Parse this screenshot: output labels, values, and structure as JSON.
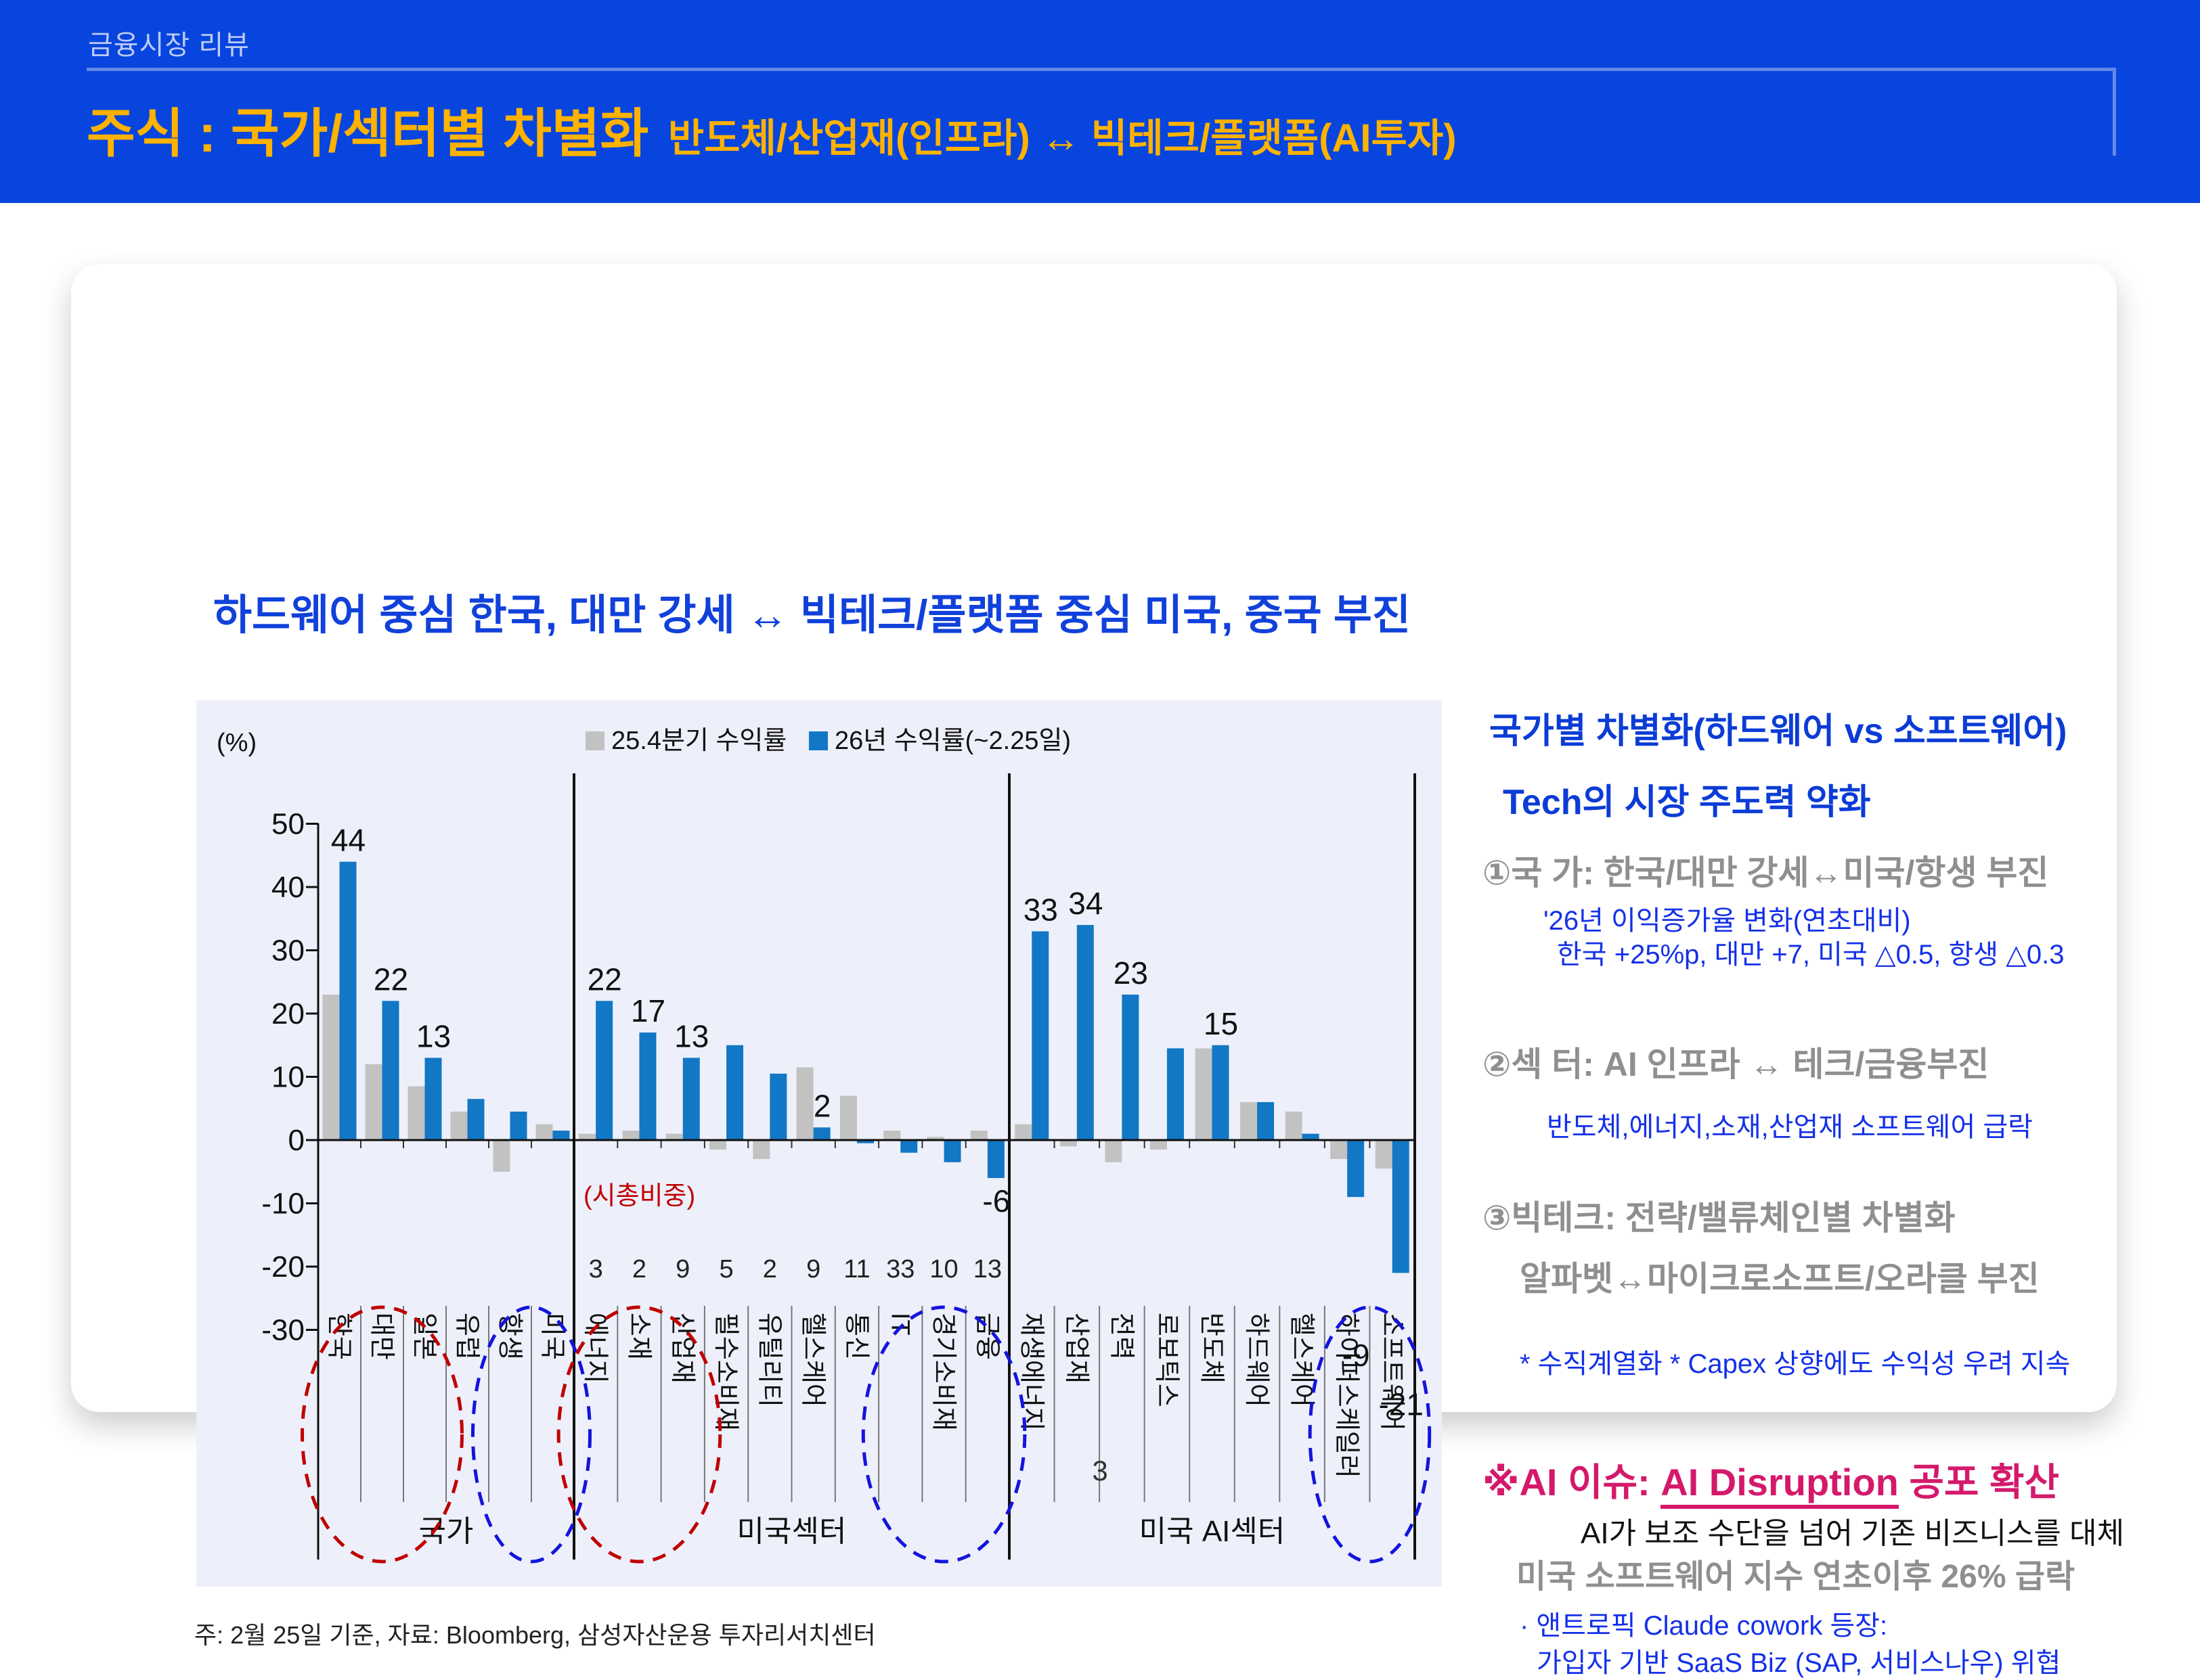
{
  "header": {
    "eyebrow": "금융시장 리뷰",
    "title_main": "주식 : 국가/섹터별 차별화",
    "title_sub": "반도체/산업재(인프라) ↔ 빅테크/플랫폼(AI투자)"
  },
  "card": {
    "headline": "하드웨어 중심 한국, 대만 강세 ↔ 빅테크/플랫폼 중심 미국, 중국 부진",
    "note": "주: 2월 25일 기준, 자료: Bloomberg, 삼성자산운용 투자리서치센터"
  },
  "page_number": "3",
  "right_panel": {
    "heading1": "국가별 차별화(하드웨어 vs 소프트웨어)",
    "heading2": "Tech의 시장 주도력 약화",
    "item1": {
      "title": "①국  가: 한국/대만 강세↔미국/항생 부진",
      "sub1": "'26년 이익증가율 변화(연초대비)",
      "sub2": "한국 +25%p, 대만 +7, 미국 △0.5, 항생 △0.3"
    },
    "item2": {
      "title": "②섹 터: AI 인프라  ↔  테크/금융부진",
      "sub": "반도체,에너지,소재,산업재    소프트웨어 급락"
    },
    "item3": {
      "title": "③빅테크: 전략/밸류체인별 차별화",
      "line2": "알파벳↔마이크로소프트/오라클 부진",
      "sub": "* 수직계열화    * Capex 상향에도 수익성 우려 지속"
    },
    "ai_issue": {
      "heading_prefix": "※AI 이슈: ",
      "heading_underline": "AI Disruption",
      "heading_suffix": " 공포 확산",
      "line1": "AI가 보조 수단을 넘어 기존 비즈니스를 대체",
      "line2": "미국 소프트웨어 지수 연초이후 26% 급락",
      "bullet1": "· 앤트로픽 Claude cowork 등장:",
      "bullet2": "가입자 기반 SaaS Biz (SAP, 서비스나우) 위협"
    }
  },
  "chart_data": {
    "type": "bar",
    "unit_label": "(%)",
    "ylim": [
      -30,
      50
    ],
    "yticks": [
      50,
      40,
      30,
      20,
      10,
      0,
      -10,
      -20,
      -30
    ],
    "legend": [
      {
        "label": "25.4분기 수익률",
        "color": "#C2C2C2"
      },
      {
        "label": "26년 수익률(~2.25일)",
        "color": "#1277C5"
      }
    ],
    "weight_caption": "(시총비중)",
    "annotation_colors": {
      "red": "#C00000",
      "blue": "#1414DC"
    },
    "groups": [
      {
        "name": "국가",
        "categories": [
          {
            "label": "한국",
            "q25": 23,
            "y26": 44,
            "value_label": "44"
          },
          {
            "label": "대만",
            "q25": 12,
            "y26": 22,
            "value_label": "22"
          },
          {
            "label": "일본",
            "q25": 8.5,
            "y26": 13,
            "value_label": "13"
          },
          {
            "label": "유럽",
            "q25": 4.5,
            "y26": 6.5
          },
          {
            "label": "항생",
            "q25": -5,
            "y26": 4.5
          },
          {
            "label": "미국",
            "q25": 2.5,
            "y26": 1.5
          }
        ]
      },
      {
        "name": "미국섹터",
        "categories": [
          {
            "label": "에너지",
            "weight": 3,
            "q25": 1,
            "y26": 22,
            "value_label": "22"
          },
          {
            "label": "소재",
            "weight": 2,
            "q25": 1.5,
            "y26": 17,
            "value_label": "17"
          },
          {
            "label": "산업재",
            "weight": 9,
            "q25": 1,
            "y26": 13,
            "value_label": "13"
          },
          {
            "label": "필수소비재",
            "weight": 5,
            "q25": -1.5,
            "y26": 15
          },
          {
            "label": "유틸리티",
            "weight": 2,
            "q25": -3,
            "y26": 10.5
          },
          {
            "label": "헬스케어",
            "weight": 9,
            "q25": 11.5,
            "y26": 2,
            "value_label": "2"
          },
          {
            "label": "통신",
            "weight": 11,
            "q25": 7,
            "y26": -0.5
          },
          {
            "label": "IT",
            "weight": 33,
            "q25": 1.5,
            "y26": -2
          },
          {
            "label": "경기소비재",
            "weight": 10,
            "q25": 0.5,
            "y26": -3.5
          },
          {
            "label": "금융",
            "weight": 13,
            "q25": 1.5,
            "y26": -6,
            "value_label": "-6",
            "label_dy": 50
          }
        ]
      },
      {
        "name": "미국 AI섹터",
        "categories": [
          {
            "label": "재생에너지",
            "q25": 2.5,
            "y26": 33,
            "value_label": "33"
          },
          {
            "label": "산업재",
            "q25": -1,
            "y26": 34,
            "value_label": "34"
          },
          {
            "label": "전력",
            "q25": -3.5,
            "y26": 23,
            "value_label": "23"
          },
          {
            "label": "로보틱스",
            "q25": -1.5,
            "y26": 14.5
          },
          {
            "label": "반도체",
            "q25": 14.5,
            "y26": 15,
            "value_label": "15"
          },
          {
            "label": "하드웨어",
            "q25": 6,
            "y26": 6
          },
          {
            "label": "헬스케어",
            "q25": 4.5,
            "y26": 1
          },
          {
            "label": "하이퍼스케일러",
            "q25": -3,
            "y26": -9,
            "value_label": "-9",
            "label_dy": 250
          },
          {
            "label": "소프트웨어",
            "q25": -4.5,
            "y26": -21,
            "value_label": "-21",
            "label_dy": 210
          }
        ]
      }
    ],
    "ellipses": [
      {
        "color": "red",
        "group": 0,
        "from": 0,
        "to": 2
      },
      {
        "color": "blue",
        "group": 0,
        "from": 4,
        "to": 5
      },
      {
        "color": "red",
        "group": 1,
        "from": 0,
        "to": 2
      },
      {
        "color": "blue",
        "group": 1,
        "from": 7,
        "to": 9
      },
      {
        "color": "blue",
        "group": 2,
        "from": 7,
        "to": 8
      }
    ]
  }
}
